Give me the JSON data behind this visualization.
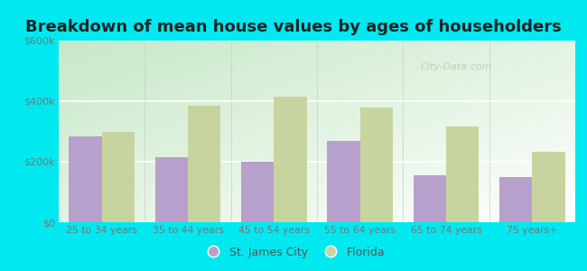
{
  "title": "Breakdown of mean house values by ages of householders",
  "categories": [
    "25 to 34 years",
    "35 to 44 years",
    "45 to 54 years",
    "55 to 64 years",
    "65 to 74 years",
    "75 years+"
  ],
  "st_james_city": [
    285000,
    215000,
    200000,
    270000,
    155000,
    150000
  ],
  "florida": [
    300000,
    385000,
    415000,
    380000,
    315000,
    232000
  ],
  "st_james_color": "#b8a0cc",
  "florida_color": "#c8d4a0",
  "ylim": [
    0,
    600000
  ],
  "yticks": [
    0,
    200000,
    400000,
    600000
  ],
  "ytick_labels": [
    "$0",
    "$200k",
    "$400k",
    "$600k"
  ],
  "legend_st_james": "St. James City",
  "legend_florida": "Florida",
  "bg_outer": "#00e8f0",
  "watermark": "City-Data.com",
  "title_fontsize": 13,
  "bar_width": 0.38
}
